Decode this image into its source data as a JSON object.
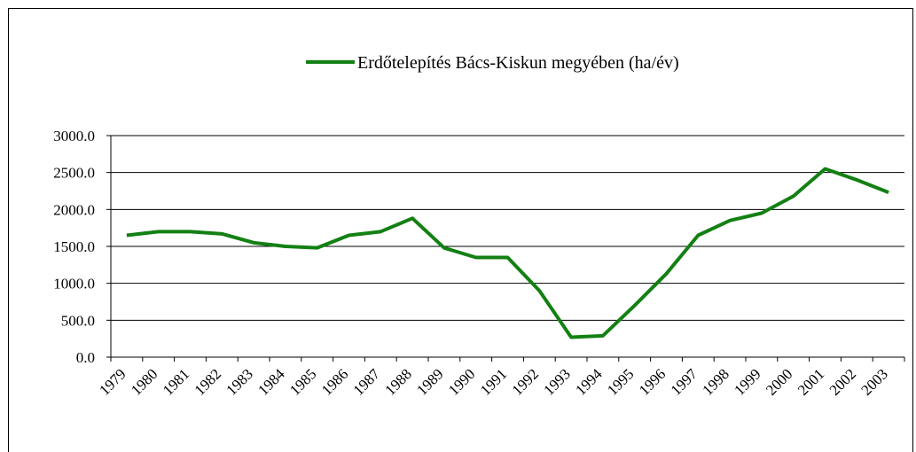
{
  "chart_data": {
    "type": "line",
    "categories": [
      "1979",
      "1980",
      "1981",
      "1982",
      "1983",
      "1984",
      "1985",
      "1986",
      "1987",
      "1988",
      "1989",
      "1990",
      "1991",
      "1992",
      "1993",
      "1994",
      "1995",
      "1996",
      "1997",
      "1998",
      "1999",
      "2000",
      "2001",
      "2002",
      "2003"
    ],
    "series": [
      {
        "name": "Erdőtelepítés Bács-Kiskun megyében (ha/év)",
        "color": "#138013",
        "values": [
          1650,
          1700,
          1700,
          1670,
          1550,
          1500,
          1480,
          1650,
          1700,
          1880,
          1480,
          1350,
          1350,
          900,
          270,
          290,
          700,
          1130,
          1650,
          1850,
          1950,
          2180,
          2550,
          2400,
          2230
        ]
      }
    ],
    "ylim": [
      0,
      3000
    ],
    "yticks": [
      {
        "value": 0,
        "label": "0.0"
      },
      {
        "value": 500,
        "label": "500.0"
      },
      {
        "value": 1000,
        "label": "1000.0"
      },
      {
        "value": 1500,
        "label": "1500.0"
      },
      {
        "value": 2000,
        "label": "2000.0"
      },
      {
        "value": 2500,
        "label": "2500.0"
      },
      {
        "value": 3000,
        "label": "3000.0"
      }
    ],
    "grid": true,
    "legend": "top"
  }
}
